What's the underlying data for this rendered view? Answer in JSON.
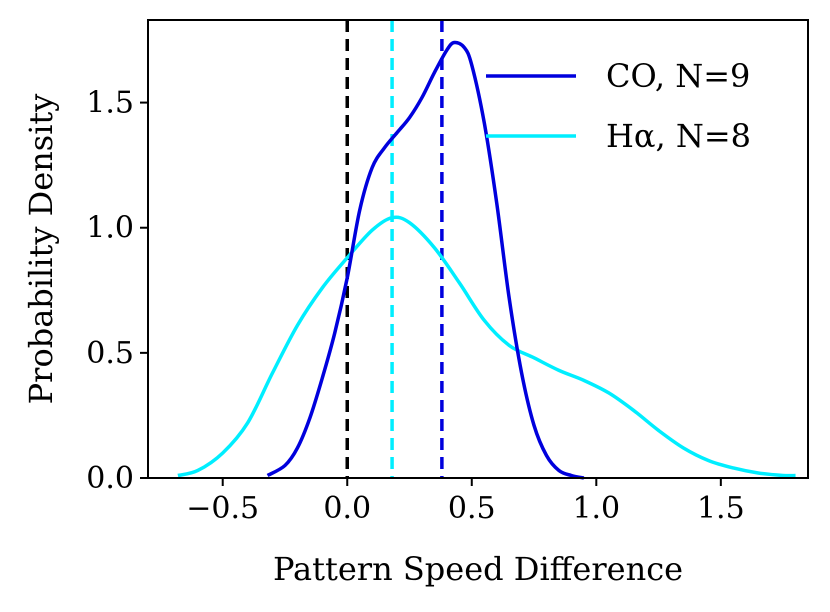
{
  "chart_data": {
    "type": "line",
    "title": "",
    "xlabel": "Pattern Speed Difference",
    "ylabel": "Probability Density",
    "xlim": [
      -0.8,
      1.85
    ],
    "ylim": [
      0,
      1.83
    ],
    "xticks": [
      -0.5,
      0.0,
      0.5,
      1.0,
      1.5
    ],
    "xtick_labels": [
      "−0.5",
      "0.0",
      "0.5",
      "1.0",
      "1.5"
    ],
    "yticks": [
      0.0,
      0.5,
      1.0,
      1.5
    ],
    "ytick_labels": [
      "0.0",
      "0.5",
      "1.0",
      "1.5"
    ],
    "grid": false,
    "legend_position": "top-right",
    "series": [
      {
        "name": "CO, N=9",
        "color": "#0000dd",
        "x": [
          -0.32,
          -0.25,
          -0.2,
          -0.15,
          -0.1,
          -0.05,
          0.0,
          0.05,
          0.1,
          0.15,
          0.2,
          0.25,
          0.3,
          0.35,
          0.4,
          0.43,
          0.47,
          0.5,
          0.55,
          0.6,
          0.65,
          0.7,
          0.75,
          0.8,
          0.85,
          0.9,
          0.95
        ],
        "y": [
          0.01,
          0.05,
          0.12,
          0.24,
          0.4,
          0.58,
          0.8,
          1.07,
          1.24,
          1.32,
          1.38,
          1.44,
          1.52,
          1.62,
          1.71,
          1.74,
          1.72,
          1.65,
          1.42,
          1.1,
          0.72,
          0.42,
          0.21,
          0.09,
          0.03,
          0.01,
          0.0
        ]
      },
      {
        "name": "Hα, N=8",
        "color": "#00eeff",
        "x": [
          -0.68,
          -0.6,
          -0.5,
          -0.4,
          -0.3,
          -0.2,
          -0.1,
          0.0,
          0.1,
          0.18,
          0.25,
          0.35,
          0.45,
          0.55,
          0.65,
          0.75,
          0.85,
          0.95,
          1.05,
          1.15,
          1.25,
          1.35,
          1.45,
          1.55,
          1.65,
          1.75,
          1.8
        ],
        "y": [
          0.01,
          0.03,
          0.1,
          0.22,
          0.42,
          0.61,
          0.76,
          0.88,
          0.99,
          1.04,
          1.02,
          0.92,
          0.78,
          0.63,
          0.53,
          0.48,
          0.43,
          0.39,
          0.34,
          0.27,
          0.19,
          0.12,
          0.07,
          0.04,
          0.02,
          0.01,
          0.01
        ]
      }
    ],
    "reference_lines": [
      {
        "name": "zero",
        "x": 0.0,
        "color": "#000000",
        "style": "dashed"
      },
      {
        "name": "halpha-mean",
        "x": 0.18,
        "color": "#00eeff",
        "style": "dashed"
      },
      {
        "name": "co-mean",
        "x": 0.38,
        "color": "#0000dd",
        "style": "dashed"
      }
    ]
  }
}
